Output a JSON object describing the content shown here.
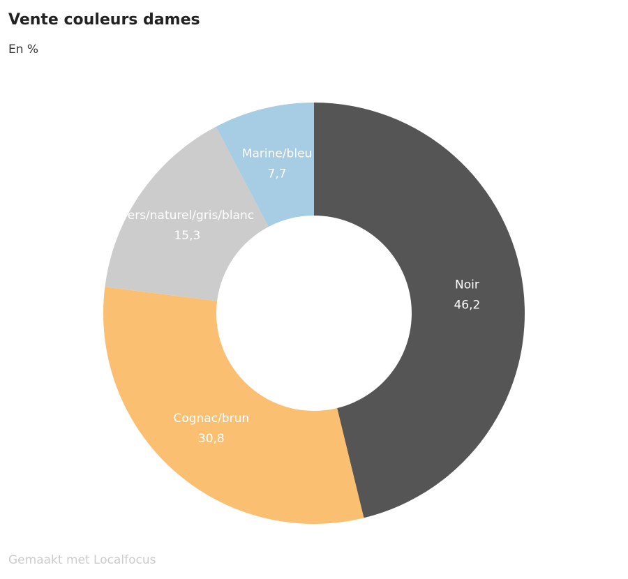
{
  "chart_data": {
    "type": "donut",
    "title": "Vente couleurs dames",
    "subtitle": "En %",
    "categories": [
      "Noir",
      "Cognac/brun",
      "vers/naturel/gris/blanc",
      "Marine/bleu"
    ],
    "values": [
      46.2,
      30.8,
      15.3,
      7.7
    ],
    "value_labels": [
      "46,2",
      "30,8",
      "15,3",
      "7,7"
    ],
    "colors": [
      "#555555",
      "#fbbf72",
      "#cccccc",
      "#a6cde3"
    ],
    "footer": "Gemaakt met Localfocus"
  }
}
